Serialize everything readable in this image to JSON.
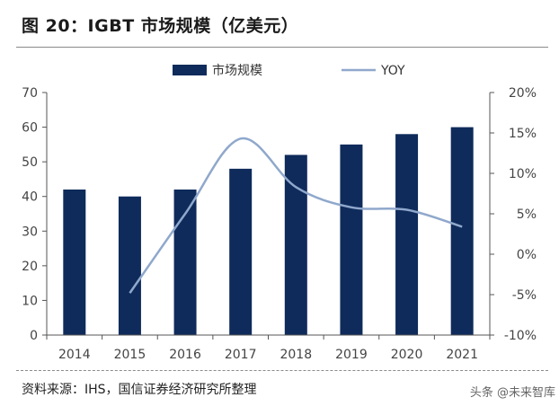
{
  "title": "图 20：IGBT 市场规模（亿美元）",
  "source": "资料来源：IHS，国信证券经济研究所整理",
  "watermark": "头条 @未来智库",
  "colors": {
    "bar": "#0f2b5b",
    "line": "#8fa8cc",
    "axis": "#555555"
  },
  "chart_data": {
    "type": "bar",
    "categories": [
      "2014",
      "2015",
      "2016",
      "2017",
      "2018",
      "2019",
      "2020",
      "2021"
    ],
    "series": [
      {
        "name": "市场规模",
        "type": "bar",
        "axis": "left",
        "values": [
          42,
          40,
          42,
          48,
          52,
          55,
          58,
          60
        ]
      },
      {
        "name": "YOY",
        "type": "line",
        "axis": "right",
        "values": [
          null,
          -4.8,
          5.0,
          14.3,
          8.3,
          5.8,
          5.5,
          3.4
        ]
      }
    ],
    "y_left": {
      "min": 0,
      "max": 70,
      "ticks": [
        "0",
        "10",
        "20",
        "30",
        "40",
        "50",
        "60",
        "70"
      ]
    },
    "y_right": {
      "min": -10,
      "max": 20,
      "ticks": [
        "-10%",
        "-5%",
        "0%",
        "5%",
        "10%",
        "15%",
        "20%"
      ]
    },
    "legend": "top",
    "grid": false
  }
}
